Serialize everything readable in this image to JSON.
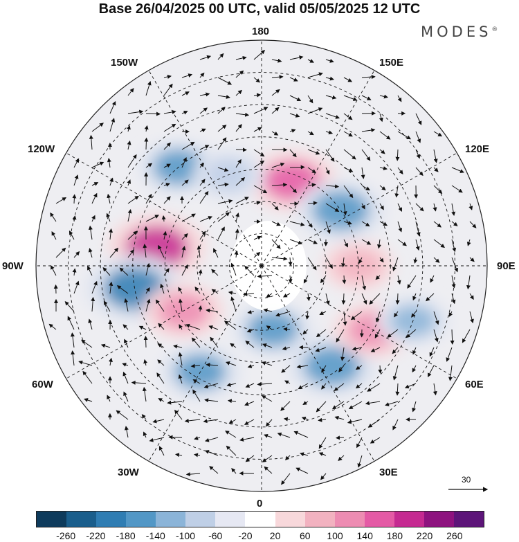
{
  "title": "Base 26/04/2025 00 UTC, valid 05/05/2025 12 UTC",
  "logo": "MODES",
  "logo_mark": "®",
  "map_labels": {
    "top": "180",
    "bottom": "0",
    "left": "90W",
    "right": "90E",
    "nw1": "150W",
    "nw2": "120W",
    "ne1": "150E",
    "ne2": "120E",
    "sw1": "60W",
    "sw2": "30W",
    "se1": "60E",
    "se2": "30E"
  },
  "reference_vector": "30",
  "colorbar": {
    "colors": [
      "#0e3b5c",
      "#1a5e8c",
      "#2f7db3",
      "#5297c6",
      "#8bb4d8",
      "#bfcfe6",
      "#e6e8f3",
      "#ffffff",
      "#f8d8db",
      "#f2b2c0",
      "#ed8cb2",
      "#e45aa5",
      "#c52a91",
      "#8e137f",
      "#5d1579"
    ],
    "ticks": [
      "-260",
      "-220",
      "-180",
      "-140",
      "-100",
      "-60",
      "-20",
      "20",
      "60",
      "100",
      "140",
      "180",
      "220",
      "260"
    ]
  },
  "anomaly_centers": [
    {
      "lon_lat": [
        -100,
        57
      ],
      "level": 180,
      "color": "#c52a91"
    },
    {
      "lon_lat": [
        -80,
        50
      ],
      "level": -180,
      "color": "#2f7db3"
    },
    {
      "lon_lat": [
        -140,
        50
      ],
      "level": -100,
      "color": "#5297c6"
    },
    {
      "lon_lat": [
        160,
        62
      ],
      "level": 140,
      "color": "#e45aa5"
    },
    {
      "lon_lat": [
        125,
        60
      ],
      "level": -140,
      "color": "#5297c6"
    },
    {
      "lon_lat": [
        -30,
        52
      ],
      "level": -100,
      "color": "#5297c6"
    },
    {
      "lon_lat": [
        -60,
        62
      ],
      "level": 100,
      "color": "#ed8cb2"
    },
    {
      "lon_lat": [
        10,
        70
      ],
      "level": -100,
      "color": "#5297c6"
    },
    {
      "lon_lat": [
        35,
        52
      ],
      "level": -140,
      "color": "#5297c6"
    },
    {
      "lon_lat": [
        60,
        50
      ],
      "level": 100,
      "color": "#ed8cb2"
    },
    {
      "lon_lat": [
        70,
        40
      ],
      "level": -60,
      "color": "#8bb4d8"
    },
    {
      "lon_lat": [
        -160,
        60
      ],
      "level": -60,
      "color": "#bfcfe6"
    },
    {
      "lon_lat": [
        90,
        60
      ],
      "level": 60,
      "color": "#f2b2c0"
    }
  ]
}
